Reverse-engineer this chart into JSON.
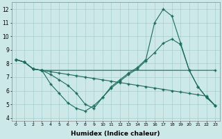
{
  "xlabel": "Humidex (Indice chaleur)",
  "bg_color": "#cce8e8",
  "line_color": "#1a6b5a",
  "xlim": [
    -0.5,
    23.5
  ],
  "ylim": [
    3.8,
    12.5
  ],
  "yticks": [
    4,
    5,
    6,
    7,
    8,
    9,
    10,
    11,
    12
  ],
  "line1_x": [
    0,
    1,
    2,
    3,
    23
  ],
  "line1_y": [
    8.3,
    8.1,
    7.6,
    7.5,
    7.5
  ],
  "line2_x": [
    0,
    1,
    2,
    3,
    4,
    5,
    6,
    7,
    8,
    9,
    10,
    11,
    12,
    13,
    14,
    15,
    16,
    17,
    18,
    19,
    20,
    21,
    22,
    23
  ],
  "line2_y": [
    8.3,
    8.1,
    7.6,
    7.5,
    6.5,
    5.8,
    5.1,
    4.7,
    4.5,
    4.9,
    5.5,
    6.2,
    6.7,
    7.2,
    7.6,
    8.2,
    8.8,
    9.5,
    9.8,
    9.4,
    7.5,
    6.3,
    5.5,
    4.9
  ],
  "line3_x": [
    0,
    1,
    2,
    3,
    4,
    5,
    6,
    7,
    8,
    9,
    10,
    11,
    12,
    13,
    14,
    15,
    16,
    17,
    18,
    19,
    20,
    21,
    22,
    23
  ],
  "line3_y": [
    8.3,
    8.1,
    7.6,
    7.5,
    7.2,
    6.8,
    6.4,
    5.8,
    5.0,
    4.7,
    5.5,
    6.3,
    6.8,
    7.3,
    7.7,
    8.3,
    11.0,
    12.0,
    11.5,
    9.5,
    7.5,
    6.3,
    5.5,
    4.9
  ],
  "line4_x": [
    0,
    1,
    2,
    3,
    4,
    5,
    6,
    7,
    8,
    9,
    10,
    11,
    12,
    13,
    14,
    15,
    16,
    17,
    18,
    19,
    20,
    21,
    22,
    23
  ],
  "line4_y": [
    8.3,
    8.1,
    7.6,
    7.5,
    7.4,
    7.3,
    7.2,
    7.1,
    7.0,
    6.9,
    6.8,
    6.7,
    6.6,
    6.5,
    6.4,
    6.3,
    6.2,
    6.1,
    6.0,
    5.9,
    5.8,
    5.7,
    5.6,
    4.9
  ]
}
